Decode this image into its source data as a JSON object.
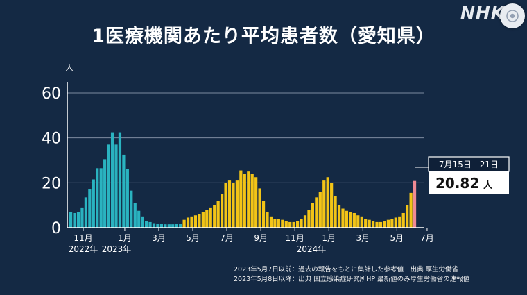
{
  "title": "1医療機関あたり平均患者数（愛知県）",
  "logo": {
    "text": "NHK",
    "icon": "camera-lens-icon"
  },
  "colors": {
    "background": "#142944",
    "grid": "#7d8aa0",
    "period1": "#2ab3c0",
    "period2": "#f2c417",
    "latest": "#f08a93"
  },
  "callout": {
    "date": "7月15日 - 21日",
    "value": "20.82",
    "unit": "人"
  },
  "footnotes": [
    "2023年5月7日以前：過去の報告をもとに集計した参考値　出典 厚生労働省",
    "2023年5月8日以降：出典 国立感染症研究所HP 最新値のみ厚生労働省の速報値"
  ],
  "chart_data": {
    "type": "bar",
    "title": "1医療機関あたり平均患者数（愛知県）",
    "ylabel": "人",
    "ylim": [
      0,
      65
    ],
    "yticks": [
      0,
      20,
      40,
      60
    ],
    "grid": true,
    "x_tick_labels": [
      "11月",
      "1月",
      "3月",
      "5月",
      "7月",
      "9月",
      "11月",
      "1月",
      "3月",
      "5月",
      "7月"
    ],
    "x_year_labels": [
      "2022年",
      "2023年",
      "2024年"
    ],
    "series": [
      {
        "values": [
          7,
          6.5,
          7,
          9,
          13.5,
          17,
          21.5,
          26.5,
          26.5,
          30.5,
          37,
          42.5,
          37,
          42.5,
          32.5,
          26,
          16.5,
          11,
          7.5,
          5,
          3,
          2.5,
          2,
          1.8,
          1.6,
          1.5,
          1.5,
          1.5,
          1.6,
          1.7
        ]
      },
      {
        "values": [
          3.5,
          4.5,
          5,
          5.5,
          6,
          7,
          8,
          9,
          10,
          12,
          15,
          20,
          21,
          20,
          21,
          25.5,
          24,
          25,
          24,
          22.5,
          17.5,
          12,
          7,
          5,
          4,
          3.8,
          3.5,
          3,
          2.5,
          2.5,
          3,
          4,
          5.5,
          8,
          11,
          13.5,
          16,
          21,
          22.5,
          20,
          14,
          10,
          8.5,
          7.5,
          7,
          6.5,
          5.5,
          5,
          4,
          3.5,
          3,
          2.5,
          2.5,
          3,
          3.5,
          4,
          4.5,
          5,
          6.5,
          10,
          15.5
        ]
      },
      {
        "values": [
          20.82
        ]
      }
    ]
  }
}
